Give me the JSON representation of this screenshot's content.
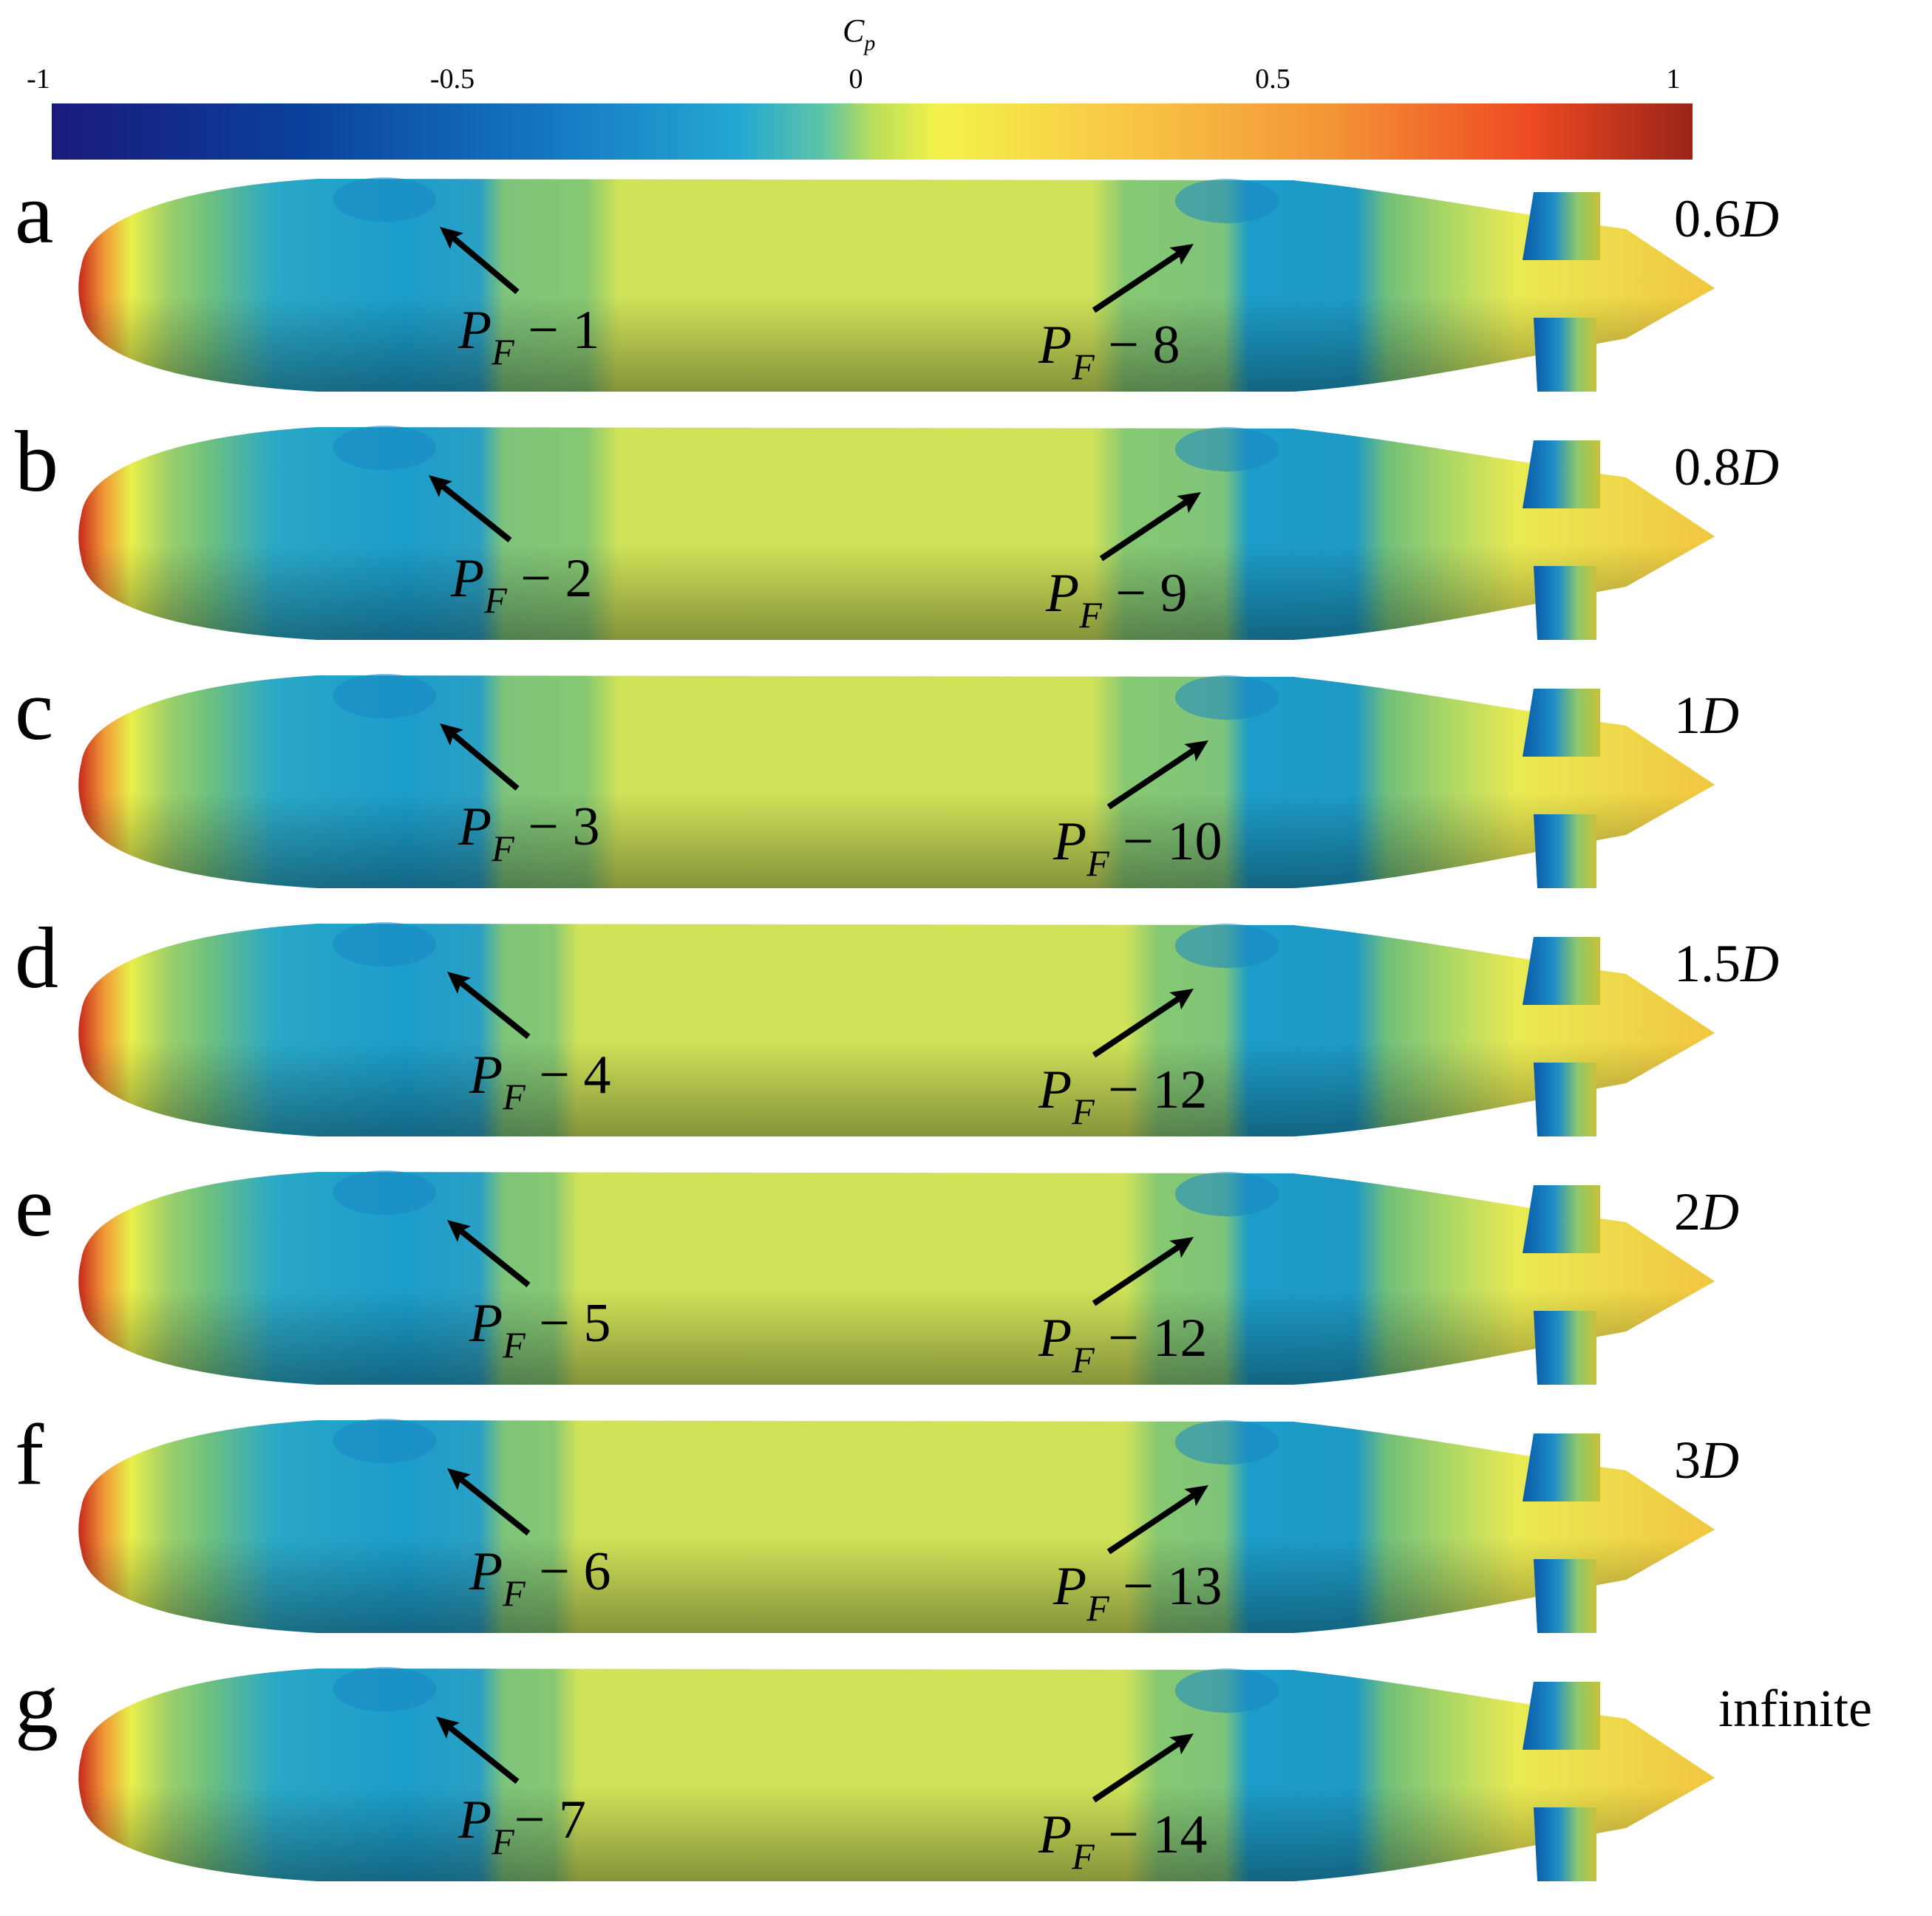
{
  "colorbar": {
    "title": "C",
    "title_sub": "p",
    "ticks": [
      "-1",
      "-0.5",
      "0",
      "0.5",
      "1"
    ],
    "tick_values": [
      -1,
      -0.5,
      0,
      0.5,
      1
    ],
    "colors": [
      "#1a1a7a",
      "#0a4aa8",
      "#1e7ec8",
      "#2ab0d6",
      "#8ccf6a",
      "#e8ef4a",
      "#f8d048",
      "#f39a38",
      "#ee4a22",
      "#a8261a"
    ]
  },
  "panels": [
    {
      "letter": "a",
      "distance": "0.6",
      "distance_unit": "D",
      "pf_left": {
        "p": "P",
        "sub": "F",
        "text": " − 1"
      },
      "pf_right": {
        "p": "P",
        "sub": "F",
        "text": " − 8"
      }
    },
    {
      "letter": "b",
      "distance": "0.8",
      "distance_unit": "D",
      "pf_left": {
        "p": "P",
        "sub": "F",
        "text": " − 2"
      },
      "pf_right": {
        "p": "P",
        "sub": "F",
        "text": " − 9"
      }
    },
    {
      "letter": "c",
      "distance": "1",
      "distance_unit": "D",
      "pf_left": {
        "p": "P",
        "sub": "F",
        "text": " − 3"
      },
      "pf_right": {
        "p": "P",
        "sub": "F",
        "text": " − 10"
      }
    },
    {
      "letter": "d",
      "distance": "1.5",
      "distance_unit": "D",
      "pf_left": {
        "p": "P",
        "sub": "F",
        "text": " − 4"
      },
      "pf_right": {
        "p": "P",
        "sub": "F",
        "text": " − 12"
      }
    },
    {
      "letter": "e",
      "distance": "2",
      "distance_unit": "D",
      "pf_left": {
        "p": "P",
        "sub": "F",
        "text": " − 5"
      },
      "pf_right": {
        "p": "P",
        "sub": "F",
        "text": " − 12"
      }
    },
    {
      "letter": "f",
      "distance": "3",
      "distance_unit": "D",
      "pf_left": {
        "p": "P",
        "sub": "F",
        "text": " − 6"
      },
      "pf_right": {
        "p": "P",
        "sub": "F",
        "text": " − 13"
      }
    },
    {
      "letter": "g",
      "distance": "infinite",
      "distance_unit": "",
      "pf_left": {
        "p": "P",
        "sub": "F",
        "text": "− 7"
      },
      "pf_right": {
        "p": "P",
        "sub": "F",
        "text": " − 14"
      }
    }
  ]
}
